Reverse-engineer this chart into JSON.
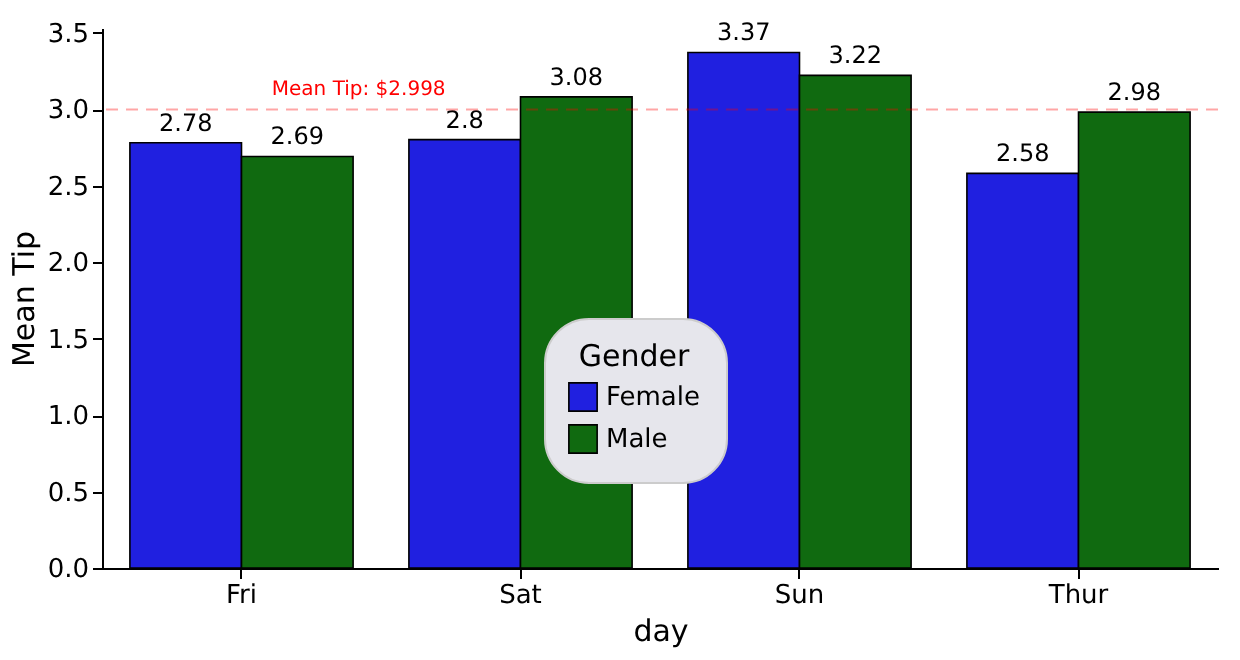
{
  "chart_data": {
    "type": "bar",
    "xlabel": "day",
    "ylabel": "Mean Tip",
    "legend_title": "Gender",
    "categories": [
      "Fri",
      "Sat",
      "Sun",
      "Thur"
    ],
    "series": [
      {
        "name": "Female",
        "color": "#2020e0",
        "values": [
          2.78,
          2.8,
          3.37,
          2.58
        ]
      },
      {
        "name": "Male",
        "color": "#106a10",
        "values": [
          2.69,
          3.08,
          3.22,
          2.98
        ]
      }
    ],
    "ylim": [
      0,
      3.53
    ],
    "yticks": [
      {
        "value": 0,
        "label": "0.0"
      },
      {
        "value": 0.5,
        "label": "0.5"
      },
      {
        "value": 1,
        "label": "1.0"
      },
      {
        "value": 1.5,
        "label": "1.5"
      },
      {
        "value": 2,
        "label": "2.0"
      },
      {
        "value": 2.5,
        "label": "2.5"
      },
      {
        "value": 3,
        "label": "3.0"
      },
      {
        "value": 3.5,
        "label": "3.5"
      }
    ],
    "ref_lines": [
      {
        "axis": "y",
        "value": 2.998,
        "label": "Mean Tip: $2.998",
        "color": "#ff0000",
        "line_style": "dashed"
      }
    ],
    "data_labels": true,
    "grid": false,
    "legend": "bottom"
  }
}
